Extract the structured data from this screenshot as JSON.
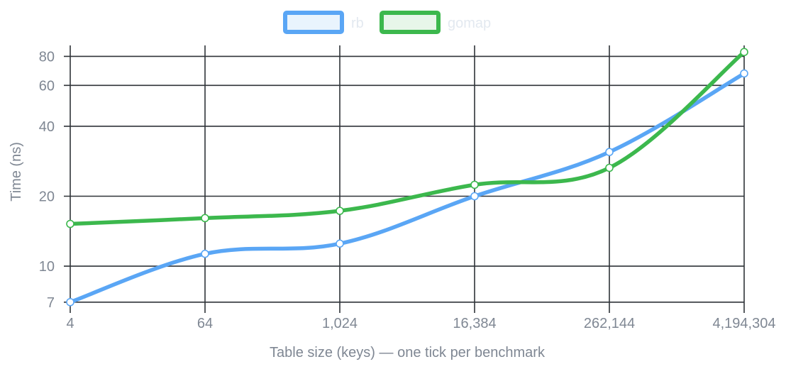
{
  "chart_data": {
    "type": "line",
    "x_scale": "log2",
    "y_scale": "log",
    "xlabel": "Table size (keys) — one tick per benchmark",
    "ylabel": "Time (ns)",
    "x_ticks": [
      4,
      64,
      1024,
      16384,
      262144,
      4194304
    ],
    "x_tick_labels": [
      "4",
      "64",
      "1,024",
      "16,384",
      "262,144",
      "4,194,304"
    ],
    "y_ticks": [
      7,
      10,
      20,
      40,
      60,
      80
    ],
    "y_tick_labels": [
      "7",
      "10",
      "20",
      "40",
      "60",
      "80"
    ],
    "xlim": [
      4,
      4194304
    ],
    "ylim": [
      6.7,
      93
    ],
    "grid": true,
    "legend_position": "top-center",
    "series": [
      {
        "name": "rb",
        "color": "#5aa6f5",
        "fill": "#e9f4fd",
        "x": [
          4,
          64,
          1024,
          16384,
          262144,
          4194304
        ],
        "y": [
          7,
          11.3,
          12.5,
          20,
          31,
          67.5
        ]
      },
      {
        "name": "gomap",
        "color": "#3cb84d",
        "fill": "#e7f6e9",
        "x": [
          4,
          64,
          1024,
          16384,
          262144,
          4194304
        ],
        "y": [
          15.2,
          16.1,
          17.3,
          22.4,
          26.5,
          83.5
        ]
      }
    ]
  }
}
